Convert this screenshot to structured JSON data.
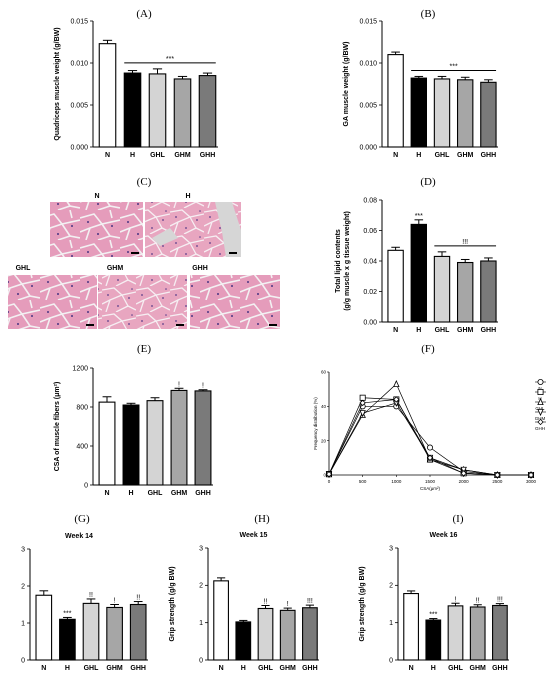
{
  "panels": [
    {
      "letter": "(A)"
    },
    {
      "letter": "(B)"
    },
    {
      "letter": "(C)"
    },
    {
      "letter": "(D)"
    },
    {
      "letter": "(E)"
    },
    {
      "letter": "(F)"
    },
    {
      "letter": "(G)"
    },
    {
      "letter": "(H)"
    },
    {
      "letter": "(I)"
    }
  ],
  "histology": {
    "labels": [
      "N",
      "H",
      "GHL",
      "GHM",
      "GHH"
    ]
  },
  "bar_colors": [
    "#ffffff",
    "#000000",
    "#d4d4d4",
    "#a6a6a6",
    "#7a7a7a"
  ],
  "chart_data": [
    {
      "id": "A",
      "type": "bar",
      "categories": [
        "N",
        "H",
        "GHL",
        "GHM",
        "GHH"
      ],
      "values": [
        0.0123,
        0.0088,
        0.0087,
        0.0081,
        0.0085
      ],
      "errors": [
        0.0004,
        0.0003,
        0.0006,
        0.0003,
        0.0003
      ],
      "title": "",
      "ylabel": "Quadriceps muscle weight (g/BW)",
      "ylim": [
        0,
        0.015
      ],
      "yticks": [
        "0.000",
        "0.005",
        "0.010",
        "0.015"
      ],
      "yticks_values": [
        0,
        0.005,
        0.01,
        0.015
      ],
      "sig": [
        {
          "text": "***",
          "from": 1,
          "to": 4
        }
      ],
      "marks": [
        "",
        "",
        "",
        "",
        ""
      ]
    },
    {
      "id": "B",
      "type": "bar",
      "categories": [
        "N",
        "H",
        "GHL",
        "GHM",
        "GHH"
      ],
      "values": [
        0.011,
        0.0082,
        0.0081,
        0.008,
        0.0077
      ],
      "errors": [
        0.0003,
        0.0002,
        0.0003,
        0.0003,
        0.0003
      ],
      "title": "",
      "ylabel": "GA muscle weight (g/BW)",
      "ylim": [
        0,
        0.015
      ],
      "yticks": [
        "0.000",
        "0.005",
        "0.010",
        "0.015"
      ],
      "yticks_values": [
        0,
        0.005,
        0.01,
        0.015
      ],
      "sig": [
        {
          "text": "***",
          "from": 1,
          "to": 4
        }
      ],
      "marks": [
        "",
        "",
        "",
        "",
        ""
      ]
    },
    {
      "id": "D",
      "type": "bar",
      "categories": [
        "N",
        "H",
        "GHL",
        "GHM",
        "GHH"
      ],
      "values": [
        0.047,
        0.064,
        0.043,
        0.039,
        0.04
      ],
      "errors": [
        0.002,
        0.003,
        0.003,
        0.002,
        0.002
      ],
      "title": "",
      "ylabel": "Total lipid contents",
      "ylabel2": "(g/g muscle x g tissue weight)",
      "ylim": [
        0,
        0.08
      ],
      "yticks": [
        "0.00",
        "0.02",
        "0.04",
        "0.06",
        "0.08"
      ],
      "yticks_values": [
        0,
        0.02,
        0.04,
        0.06,
        0.08
      ],
      "sig": [
        {
          "text": "!!!",
          "from": 2,
          "to": 4
        }
      ],
      "marks": [
        "",
        "***",
        "",
        "",
        ""
      ]
    },
    {
      "id": "E",
      "type": "bar",
      "categories": [
        "N",
        "H",
        "GHL",
        "GHM",
        "GHH"
      ],
      "values": [
        850,
        820,
        865,
        970,
        965
      ],
      "errors": [
        55,
        18,
        30,
        22,
        12
      ],
      "title": "",
      "ylabel": "CSA of muscle fibers (μm²)",
      "ylim": [
        0,
        1200
      ],
      "yticks": [
        "0",
        "400",
        "800",
        "1200"
      ],
      "yticks_values": [
        0,
        400,
        800,
        1200
      ],
      "sig": [],
      "marks": [
        "",
        "",
        "",
        "!",
        "!"
      ]
    },
    {
      "id": "F",
      "type": "line",
      "x": [
        0,
        500,
        1000,
        1500,
        2000,
        2500,
        3000
      ],
      "xticks": [
        "0",
        "500",
        "1000",
        "1500",
        "2000",
        "2500",
        "3000"
      ],
      "xlabel": "CSA(μm²)",
      "ylabel": "Frequency distribution (%)",
      "ylim": [
        0,
        60
      ],
      "yticks": [
        "0",
        "20",
        "40",
        "60"
      ],
      "yticks_values": [
        0,
        20,
        40,
        60
      ],
      "series": [
        {
          "name": "N",
          "marker": "circle",
          "values": [
            0.5,
            40,
            40,
            16,
            2,
            0,
            0
          ]
        },
        {
          "name": "H",
          "marker": "square",
          "values": [
            0.5,
            45,
            44,
            9,
            1,
            0,
            0
          ]
        },
        {
          "name": "GHL",
          "marker": "triangle",
          "values": [
            0.5,
            35,
            53,
            9,
            3,
            0,
            0
          ]
        },
        {
          "name": "GHM",
          "marker": "triangle-down",
          "values": [
            0.5,
            36,
            42,
            10,
            3,
            0,
            0
          ]
        },
        {
          "name": "GHH",
          "marker": "diamond",
          "values": [
            0.5,
            42,
            44,
            10,
            1,
            0,
            0
          ]
        }
      ]
    },
    {
      "id": "G",
      "type": "bar",
      "categories": [
        "N",
        "H",
        "GHL",
        "GHM",
        "GHH"
      ],
      "values": [
        1.75,
        1.1,
        1.53,
        1.42,
        1.5
      ],
      "errors": [
        0.12,
        0.05,
        0.12,
        0.08,
        0.08
      ],
      "title": "Week 14",
      "ylabel": "Grip strength (g/g BW)",
      "ylim": [
        0,
        3
      ],
      "yticks": [
        "0",
        "1",
        "2",
        "3"
      ],
      "yticks_values": [
        0,
        1,
        2,
        3
      ],
      "sig": [],
      "marks": [
        "",
        "***",
        "!!",
        "!",
        "!!"
      ]
    },
    {
      "id": "H",
      "type": "bar",
      "categories": [
        "N",
        "H",
        "GHL",
        "GHM",
        "GHH"
      ],
      "values": [
        2.12,
        1.02,
        1.38,
        1.33,
        1.4
      ],
      "errors": [
        0.08,
        0.04,
        0.08,
        0.06,
        0.07
      ],
      "title": "Week 15",
      "ylabel": "Grip strength (g/g BW)",
      "ylim": [
        0,
        3
      ],
      "yticks": [
        "0",
        "1",
        "2",
        "3"
      ],
      "yticks_values": [
        0,
        1,
        2,
        3
      ],
      "sig": [],
      "marks": [
        "",
        "",
        "!!",
        "!",
        "!!!"
      ]
    },
    {
      "id": "I",
      "type": "bar",
      "categories": [
        "N",
        "H",
        "GHL",
        "GHM",
        "GHH"
      ],
      "values": [
        1.78,
        1.07,
        1.45,
        1.42,
        1.46
      ],
      "errors": [
        0.07,
        0.04,
        0.07,
        0.06,
        0.05
      ],
      "title": "Week 16",
      "ylabel": "Grip strength (g/g BW)",
      "ylim": [
        0,
        3
      ],
      "yticks": [
        "0",
        "1",
        "2",
        "3"
      ],
      "yticks_values": [
        0,
        1,
        2,
        3
      ],
      "sig": [],
      "marks": [
        "",
        "***",
        "!",
        "!!",
        "!!!"
      ]
    }
  ]
}
